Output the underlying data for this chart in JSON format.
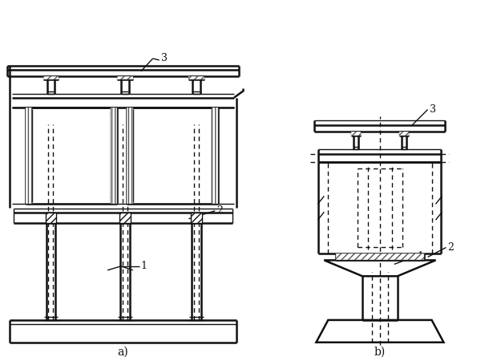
{
  "bg_color": "#ffffff",
  "lc": "#111111",
  "fig_width": 6.0,
  "fig_height": 4.5,
  "dpi": 100,
  "label_a": "a)",
  "label_b": "b)"
}
